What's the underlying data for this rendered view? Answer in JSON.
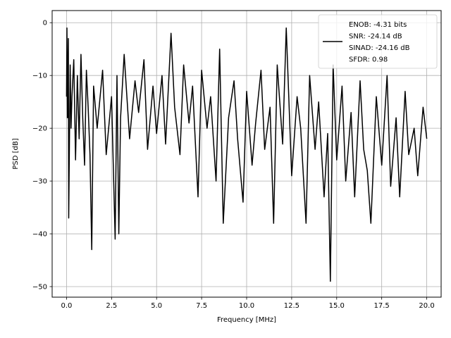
{
  "chart_data": {
    "type": "line",
    "title": "",
    "xlabel": "Frequency [MHz]",
    "ylabel": "PSD [dB]",
    "xlim": [
      -0.8,
      20.8
    ],
    "ylim": [
      -52,
      2.3
    ],
    "xticks": [
      0.0,
      2.5,
      5.0,
      7.5,
      10.0,
      12.5,
      15.0,
      17.5,
      20.0
    ],
    "xtick_labels": [
      "0.0",
      "2.5",
      "5.0",
      "7.5",
      "10.0",
      "12.5",
      "15.0",
      "17.5",
      "20.0"
    ],
    "yticks": [
      0,
      -10,
      -20,
      -30,
      -40,
      -50
    ],
    "ytick_labels": [
      "0",
      "−10",
      "−20",
      "−30",
      "−40",
      "−50"
    ],
    "grid": true,
    "legend": {
      "placement": "top-right",
      "entries": [
        "ENOB: -4.31 bits",
        "SNR: -24.14 dB",
        "SINAD: -24.16 dB",
        "SFDR: 0.98"
      ]
    },
    "series": [
      {
        "color": "#000000",
        "x": [
          0.0,
          0.02,
          0.05,
          0.1,
          0.12,
          0.2,
          0.25,
          0.3,
          0.4,
          0.5,
          0.6,
          0.7,
          0.8,
          0.9,
          1.0,
          1.1,
          1.2,
          1.3,
          1.4,
          1.5,
          1.7,
          2.0,
          2.2,
          2.5,
          2.7,
          2.8,
          2.9,
          3.0,
          3.2,
          3.5,
          3.8,
          4.0,
          4.3,
          4.5,
          4.8,
          5.0,
          5.3,
          5.5,
          5.8,
          6.0,
          6.3,
          6.5,
          6.8,
          7.0,
          7.3,
          7.5,
          7.8,
          8.0,
          8.3,
          8.5,
          8.7,
          9.0,
          9.3,
          9.5,
          9.8,
          10.0,
          10.3,
          10.5,
          10.8,
          11.0,
          11.3,
          11.5,
          11.7,
          12.0,
          12.2,
          12.5,
          12.8,
          13.0,
          13.3,
          13.5,
          13.8,
          14.0,
          14.3,
          14.5,
          14.65,
          14.8,
          15.0,
          15.3,
          15.5,
          15.8,
          16.0,
          16.3,
          16.5,
          16.7,
          16.9,
          17.2,
          17.5,
          17.8,
          18.0,
          18.3,
          18.5,
          18.8,
          19.0,
          19.3,
          19.5,
          19.8,
          20.0
        ],
        "y": [
          -14,
          -1,
          -18,
          -3,
          -37,
          -8,
          -20,
          -14,
          -7,
          -26,
          -10,
          -22,
          -6,
          -18,
          -27,
          -9,
          -16,
          -25,
          -43,
          -12,
          -20,
          -9,
          -25,
          -14,
          -41,
          -10,
          -40,
          -18,
          -6,
          -22,
          -11,
          -17,
          -7,
          -24,
          -12,
          -21,
          -10,
          -23,
          -2,
          -16,
          -25,
          -8,
          -19,
          -12,
          -33,
          -9,
          -20,
          -14,
          -30,
          -5,
          -38,
          -18,
          -11,
          -22,
          -34,
          -13,
          -27,
          -19,
          -9,
          -24,
          -16,
          -38,
          -8,
          -23,
          -1,
          -29,
          -14,
          -20,
          -38,
          -10,
          -24,
          -15,
          -33,
          -21,
          -49,
          -8,
          -26,
          -12,
          -30,
          -17,
          -33,
          -11,
          -24,
          -28,
          -38,
          -14,
          -27,
          -10,
          -31,
          -18,
          -33,
          -13,
          -25,
          -20,
          -29,
          -16,
          -22
        ]
      }
    ]
  }
}
